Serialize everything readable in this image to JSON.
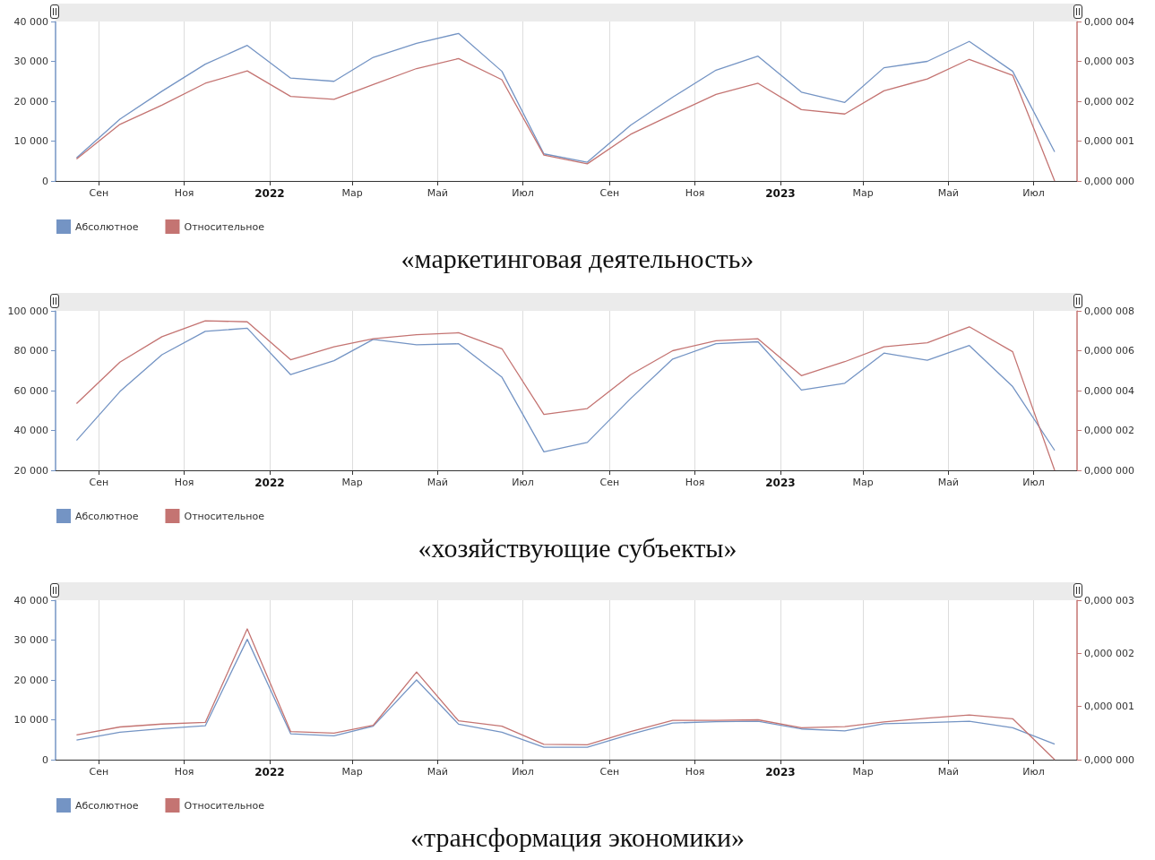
{
  "chart_data": [
    {
      "type": "line",
      "title": "«маркетинговая деятельность»",
      "x": [
        "2021-08-16",
        "2021-09-16",
        "2021-10-16",
        "2021-11-16",
        "2021-12-16",
        "2022-01-16",
        "2022-02-16",
        "2022-03-16",
        "2022-04-16",
        "2022-05-16",
        "2022-06-16",
        "2022-07-16",
        "2022-08-16",
        "2022-09-16",
        "2022-10-16",
        "2022-11-16",
        "2022-12-16",
        "2023-01-16",
        "2023-02-16",
        "2023-03-16",
        "2023-04-16",
        "2023-05-16",
        "2023-06-16",
        "2023-07-16"
      ],
      "xlim": [
        "2021-08-01",
        "2023-08-01"
      ],
      "xticks": [
        {
          "value": "2021-09-01",
          "label": "Сен"
        },
        {
          "value": "2021-11-01",
          "label": "Ноя"
        },
        {
          "value": "2022-01-01",
          "label": "2022"
        },
        {
          "value": "2022-03-01",
          "label": "Мар"
        },
        {
          "value": "2022-05-01",
          "label": "Май"
        },
        {
          "value": "2022-07-01",
          "label": "Июл"
        },
        {
          "value": "2022-09-01",
          "label": "Сен"
        },
        {
          "value": "2022-11-01",
          "label": "Ноя"
        },
        {
          "value": "2023-01-01",
          "label": "2023"
        },
        {
          "value": "2023-03-01",
          "label": "Мар"
        },
        {
          "value": "2023-05-01",
          "label": "Май"
        },
        {
          "value": "2023-07-01",
          "label": "Июл"
        }
      ],
      "ylim": [
        0,
        40000
      ],
      "yticks": [
        0,
        {
          "value": 10000,
          "label": "10 000"
        },
        {
          "value": 20000,
          "label": "20 000"
        },
        {
          "value": 30000,
          "label": "30 000"
        },
        {
          "value": 40000,
          "label": "40 000"
        }
      ],
      "y2lim": [
        0,
        4e-06
      ],
      "y2ticks": [
        {
          "value": 0,
          "label": "0,000 000"
        },
        {
          "value": 1e-06,
          "label": "0,000 001"
        },
        {
          "value": 2e-06,
          "label": "0,000 002"
        },
        {
          "value": 3e-06,
          "label": "0,000 003"
        },
        {
          "value": 4e-06,
          "label": "0,000 004"
        }
      ],
      "series": [
        {
          "name": "Абсолютное",
          "color": "#7494c4",
          "values": [
            5800,
            15500,
            22500,
            29300,
            34000,
            25800,
            25000,
            31000,
            34500,
            37000,
            27500,
            6800,
            4700,
            14000,
            21000,
            27800,
            31300,
            22300,
            19700,
            28400,
            30000,
            35000,
            27500,
            7300
          ]
        },
        {
          "name": "Относительное",
          "color": "#c47472",
          "axis": "y2",
          "values": [
            5.5e-07,
            1.42e-06,
            1.9e-06,
            2.45e-06,
            2.76e-06,
            2.12e-06,
            2.05e-06,
            2.42e-06,
            2.82e-06,
            3.07e-06,
            2.54e-06,
            6.5e-07,
            4.3e-07,
            1.17e-06,
            1.67e-06,
            2.17e-06,
            2.45e-06,
            1.79e-06,
            1.68e-06,
            2.26e-06,
            2.56e-06,
            3.05e-06,
            2.65e-06,
            0
          ]
        }
      ],
      "grid": "x",
      "legend": "bottom left"
    },
    {
      "type": "line",
      "title": "«хозяйствующие субъекты»",
      "x": [
        "2021-08-16",
        "2021-09-16",
        "2021-10-16",
        "2021-11-16",
        "2021-12-16",
        "2022-01-16",
        "2022-02-16",
        "2022-03-16",
        "2022-04-16",
        "2022-05-16",
        "2022-06-16",
        "2022-07-16",
        "2022-08-16",
        "2022-09-16",
        "2022-10-16",
        "2022-11-16",
        "2022-12-16",
        "2023-01-16",
        "2023-02-16",
        "2023-03-16",
        "2023-04-16",
        "2023-05-16",
        "2023-06-16",
        "2023-07-16"
      ],
      "xlim": [
        "2021-08-01",
        "2023-08-01"
      ],
      "xticks": [
        {
          "value": "2021-09-01",
          "label": "Сен"
        },
        {
          "value": "2021-11-01",
          "label": "Ноя"
        },
        {
          "value": "2022-01-01",
          "label": "2022"
        },
        {
          "value": "2022-03-01",
          "label": "Мар"
        },
        {
          "value": "2022-05-01",
          "label": "Май"
        },
        {
          "value": "2022-07-01",
          "label": "Июл"
        },
        {
          "value": "2022-09-01",
          "label": "Сен"
        },
        {
          "value": "2022-11-01",
          "label": "Ноя"
        },
        {
          "value": "2023-01-01",
          "label": "2023"
        },
        {
          "value": "2023-03-01",
          "label": "Мар"
        },
        {
          "value": "2023-05-01",
          "label": "Май"
        },
        {
          "value": "2023-07-01",
          "label": "Июл"
        }
      ],
      "ylim": [
        20000,
        100000
      ],
      "yticks": [
        {
          "value": 20000,
          "label": "20 000"
        },
        {
          "value": 40000,
          "label": "40 000"
        },
        {
          "value": 60000,
          "label": "60 000"
        },
        {
          "value": 80000,
          "label": "80 000"
        },
        {
          "value": 100000,
          "label": "100 000"
        }
      ],
      "y2lim": [
        0,
        8e-06
      ],
      "y2ticks": [
        {
          "value": 0,
          "label": "0,000 000"
        },
        {
          "value": 2e-06,
          "label": "0,000 002"
        },
        {
          "value": 4e-06,
          "label": "0,000 004"
        },
        {
          "value": 6e-06,
          "label": "0,000 006"
        },
        {
          "value": 8e-06,
          "label": "0,000 008"
        }
      ],
      "series": [
        {
          "name": "Абсолютное",
          "color": "#7494c4",
          "values": [
            35000,
            59500,
            78000,
            89700,
            91300,
            68000,
            75000,
            85700,
            83000,
            83500,
            66700,
            29300,
            34000,
            56000,
            75800,
            83500,
            84500,
            60300,
            63700,
            78800,
            75200,
            82600,
            62000,
            30000
          ]
        },
        {
          "name": "Относительное",
          "color": "#c47472",
          "axis": "y2",
          "values": [
            3.35e-06,
            5.43e-06,
            6.7e-06,
            7.5e-06,
            7.45e-06,
            5.55e-06,
            6.2e-06,
            6.6e-06,
            6.8e-06,
            6.9e-06,
            6.1e-06,
            2.8e-06,
            3.1e-06,
            4.8e-06,
            6e-06,
            6.5e-06,
            6.6e-06,
            4.75e-06,
            5.45e-06,
            6.2e-06,
            6.4e-06,
            7.2e-06,
            5.95e-06,
            0
          ]
        }
      ],
      "grid": "x",
      "legend": "bottom left"
    },
    {
      "type": "line",
      "title": "«трансформация экономики»",
      "x": [
        "2021-08-16",
        "2021-09-16",
        "2021-10-16",
        "2021-11-16",
        "2021-12-16",
        "2022-01-16",
        "2022-02-16",
        "2022-03-16",
        "2022-04-16",
        "2022-05-16",
        "2022-06-16",
        "2022-07-16",
        "2022-08-16",
        "2022-09-16",
        "2022-10-16",
        "2022-11-16",
        "2022-12-16",
        "2023-01-16",
        "2023-02-16",
        "2023-03-16",
        "2023-04-16",
        "2023-05-16",
        "2023-06-16",
        "2023-07-16"
      ],
      "xlim": [
        "2021-08-01",
        "2023-08-01"
      ],
      "xticks": [
        {
          "value": "2021-09-01",
          "label": "Сен"
        },
        {
          "value": "2021-11-01",
          "label": "Ноя"
        },
        {
          "value": "2022-01-01",
          "label": "2022"
        },
        {
          "value": "2022-03-01",
          "label": "Мар"
        },
        {
          "value": "2022-05-01",
          "label": "Май"
        },
        {
          "value": "2022-07-01",
          "label": "Июл"
        },
        {
          "value": "2022-09-01",
          "label": "Сен"
        },
        {
          "value": "2022-11-01",
          "label": "Ноя"
        },
        {
          "value": "2023-01-01",
          "label": "2023"
        },
        {
          "value": "2023-03-01",
          "label": "Мар"
        },
        {
          "value": "2023-05-01",
          "label": "Май"
        },
        {
          "value": "2023-07-01",
          "label": "Июл"
        }
      ],
      "ylim": [
        0,
        40000
      ],
      "yticks": [
        0,
        {
          "value": 10000,
          "label": "10 000"
        },
        {
          "value": 20000,
          "label": "20 000"
        },
        {
          "value": 30000,
          "label": "30 000"
        },
        {
          "value": 40000,
          "label": "40 000"
        }
      ],
      "y2lim": [
        0,
        3e-06
      ],
      "y2ticks": [
        {
          "value": 0,
          "label": "0,000 000"
        },
        {
          "value": 1e-06,
          "label": "0,000 001"
        },
        {
          "value": 2e-06,
          "label": "0,000 002"
        },
        {
          "value": 3e-06,
          "label": "0,000 003"
        }
      ],
      "series": [
        {
          "name": "Абсолютное",
          "color": "#7494c4",
          "values": [
            4900,
            6900,
            7800,
            8500,
            30200,
            6500,
            6000,
            8400,
            20000,
            8900,
            6900,
            3100,
            3100,
            6400,
            9200,
            9500,
            9650,
            7700,
            7200,
            9000,
            9300,
            9650,
            8000,
            3900
          ]
        },
        {
          "name": "Относительное",
          "color": "#c47472",
          "axis": "y2",
          "values": [
            4.65e-07,
            6.15e-07,
            6.7e-07,
            7e-07,
            2.46e-06,
            5.3e-07,
            5e-07,
            6.45e-07,
            1.65e-06,
            7.3e-07,
            6.3e-07,
            2.9e-07,
            2.8e-07,
            5.3e-07,
            7.4e-07,
            7.4e-07,
            7.5e-07,
            6e-07,
            6.2e-07,
            7.1e-07,
            7.8e-07,
            8.4e-07,
            7.7e-07,
            0
          ]
        }
      ],
      "grid": "x",
      "legend": "bottom left"
    }
  ]
}
